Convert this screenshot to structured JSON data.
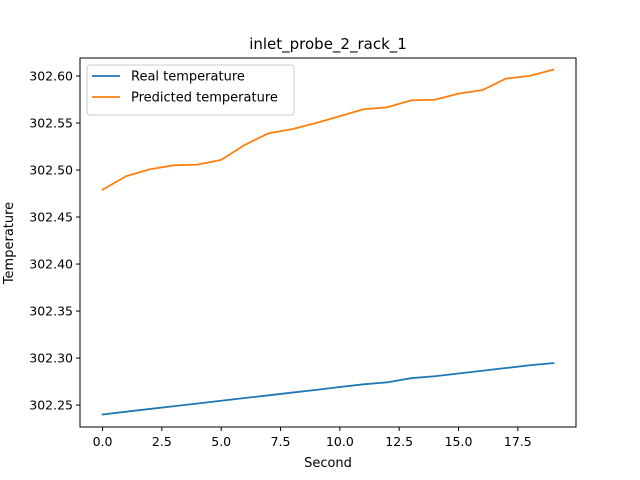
{
  "chart_data": {
    "type": "line",
    "title": "inlet_probe_2_rack_1",
    "xlabel": "Second",
    "ylabel": "Temperature",
    "xlim": [
      -0.95,
      19.95
    ],
    "ylim": [
      302.2267,
      302.6191
    ],
    "xticks": [
      0.0,
      2.5,
      5.0,
      7.5,
      10.0,
      12.5,
      15.0,
      17.5
    ],
    "xtick_labels": [
      "0.0",
      "2.5",
      "5.0",
      "7.5",
      "10.0",
      "12.5",
      "15.0",
      "17.5"
    ],
    "yticks": [
      302.25,
      302.3,
      302.35,
      302.4,
      302.45,
      302.5,
      302.55,
      302.6
    ],
    "ytick_labels": [
      "302.25",
      "302.30",
      "302.35",
      "302.40",
      "302.45",
      "302.50",
      "302.55",
      "302.60"
    ],
    "grid": false,
    "legend_position": "upper-left",
    "x": [
      0,
      1,
      2,
      3,
      4,
      5,
      6,
      7,
      8,
      9,
      10,
      11,
      12,
      13,
      14,
      15,
      16,
      17,
      18,
      19
    ],
    "series": [
      {
        "name": "Real temperature",
        "color": "#1f77b4",
        "values": [
          302.24,
          302.243,
          302.2459,
          302.2488,
          302.2517,
          302.2546,
          302.2575,
          302.2604,
          302.2633,
          302.2662,
          302.2692,
          302.2721,
          302.2742,
          302.2786,
          302.2807,
          302.2836,
          302.2865,
          302.2894,
          302.2924,
          302.2947
        ]
      },
      {
        "name": "Predicted temperature",
        "color": "#ff7f0e",
        "values": [
          302.4791,
          302.4935,
          302.5008,
          302.505,
          302.5057,
          302.5108,
          302.5268,
          302.5391,
          302.5435,
          302.55,
          302.5573,
          302.5646,
          302.5667,
          302.574,
          302.5747,
          302.5812,
          302.5849,
          302.5972,
          302.6001,
          302.6067
        ]
      }
    ]
  }
}
